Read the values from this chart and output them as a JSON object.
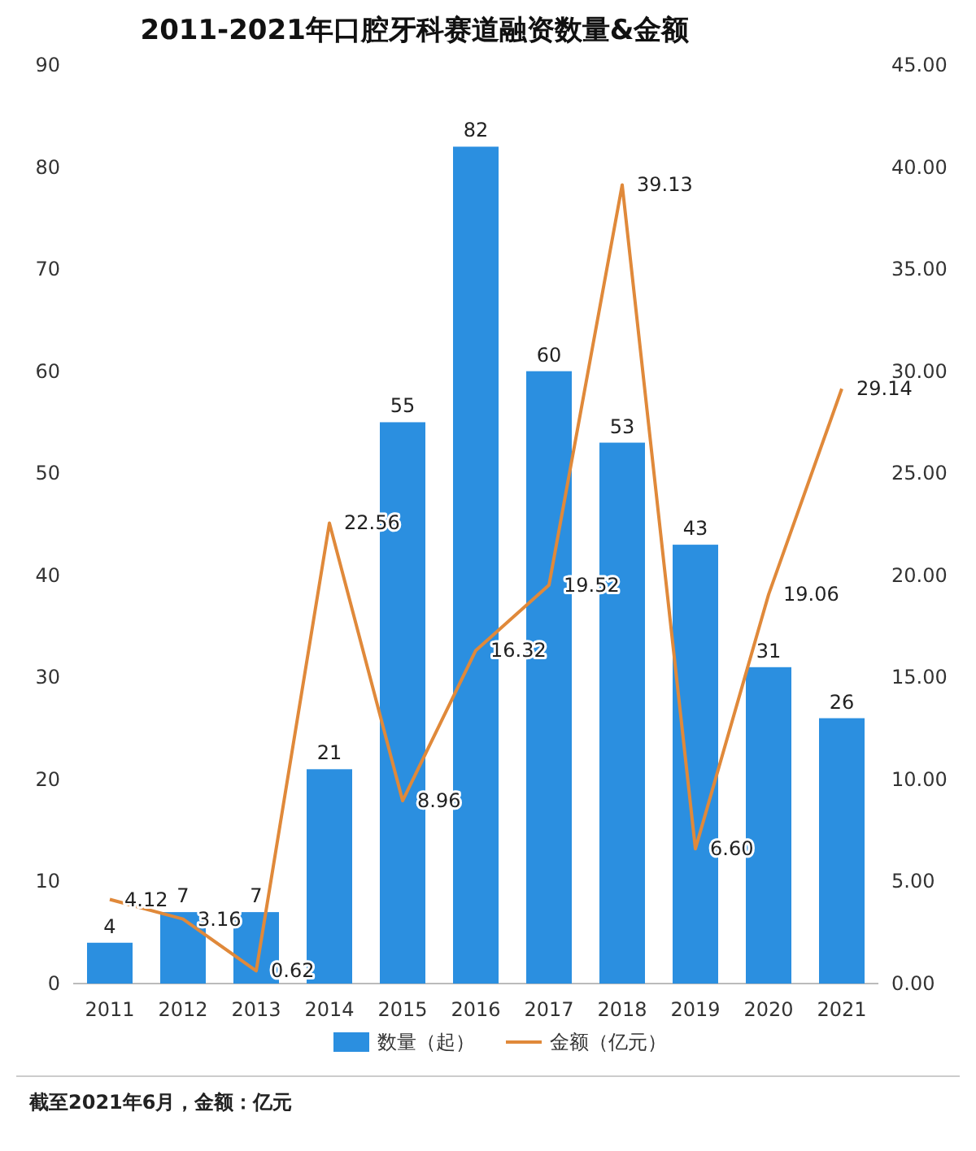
{
  "chart_data": {
    "type": "bar",
    "title": "2011-2021年口腔牙科赛道融资数量&金额",
    "categories": [
      "2011",
      "2012",
      "2013",
      "2014",
      "2015",
      "2016",
      "2017",
      "2018",
      "2019",
      "2020",
      "2021"
    ],
    "series": [
      {
        "name": "数量（起）",
        "color": "#2b8fe0",
        "values": [
          4,
          7,
          7,
          21,
          55,
          82,
          60,
          53,
          43,
          31,
          26
        ],
        "value_labels": [
          "4",
          "7",
          "7",
          "21",
          "55",
          "82",
          "60",
          "53",
          "43",
          "31",
          "26"
        ]
      },
      {
        "name": "金额（亿元）",
        "type": "line",
        "axis": "y2",
        "color": "#e0893a",
        "values": [
          4.12,
          3.16,
          0.62,
          22.56,
          8.96,
          16.32,
          19.52,
          39.13,
          6.6,
          19.06,
          29.14
        ],
        "value_labels": [
          "4.12",
          "3.16",
          "0.62",
          "22.56",
          "8.96",
          "16.32",
          "19.52",
          "39.13",
          "6.60",
          "19.06",
          "29.14"
        ]
      }
    ],
    "ylim": [
      0,
      90
    ],
    "yticks": [
      0,
      10,
      20,
      30,
      40,
      50,
      60,
      70,
      80,
      90
    ],
    "y2lim": [
      0,
      45
    ],
    "y2ticks": [
      {
        "value": 0,
        "label": "0.00"
      },
      {
        "value": 5,
        "label": "5.00"
      },
      {
        "value": 10,
        "label": "10.00"
      },
      {
        "value": 15,
        "label": "15.00"
      },
      {
        "value": 20,
        "label": "20.00"
      },
      {
        "value": 25,
        "label": "25.00"
      },
      {
        "value": 30,
        "label": "30.00"
      },
      {
        "value": 35,
        "label": "35.00"
      },
      {
        "value": 40,
        "label": "40.00"
      },
      {
        "value": 45,
        "label": "45.00"
      }
    ],
    "legend": "bottom",
    "grid": false,
    "marker": "none",
    "annotations": [
      "截至2021年6月，金额：亿元"
    ]
  }
}
